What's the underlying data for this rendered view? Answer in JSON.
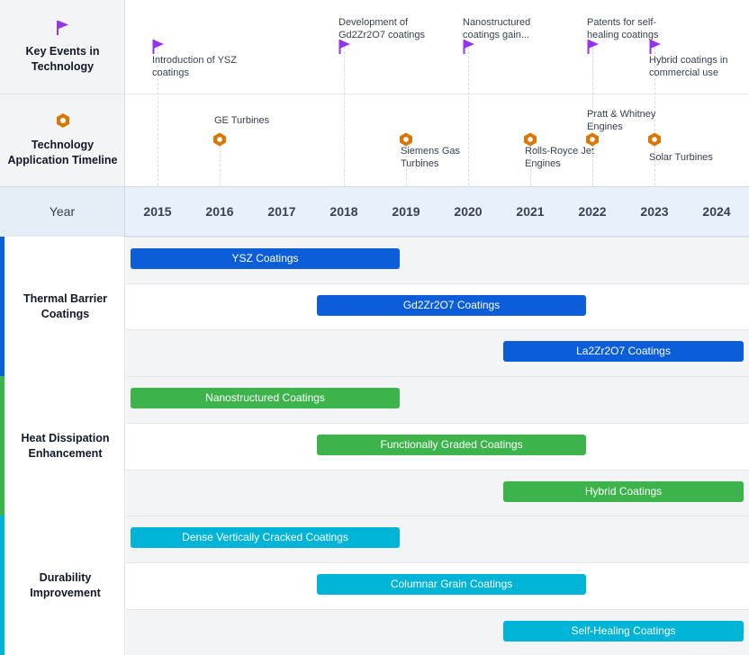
{
  "header": {
    "events_label": "Key Events in Technology",
    "apps_label": "Technology Application Timeline",
    "year_label": "Year"
  },
  "colors": {
    "flag": "#9333ea",
    "hex_icon": "#d97706",
    "tbc": "#0b5ed7",
    "heat": "#3cb44b",
    "durability": "#00b4d8"
  },
  "chart_data": {
    "type": "timeline",
    "x_years": [
      2015,
      2016,
      2017,
      2018,
      2019,
      2020,
      2021,
      2022,
      2023,
      2024
    ],
    "key_events": [
      {
        "year": 2015,
        "label": "Introduction of YSZ coatings",
        "icon": "flag-icon"
      },
      {
        "year": 2018,
        "label": "Development of Gd2Zr2O7 coatings",
        "icon": "flag-icon"
      },
      {
        "year": 2020,
        "label": "Nanostructured coatings gain...",
        "icon": "flag-icon"
      },
      {
        "year": 2022,
        "label": "Patents for self-healing coatings",
        "icon": "flag-icon"
      },
      {
        "year": 2023,
        "label": "Hybrid coatings in commercial use",
        "icon": "flag-icon"
      }
    ],
    "applications": [
      {
        "year": 2016,
        "label": "GE Turbines",
        "icon": "hexagon-icon"
      },
      {
        "year": 2019,
        "label": "Siemens Gas Turbines",
        "icon": "hexagon-icon"
      },
      {
        "year": 2021,
        "label": "Rolls-Royce Jet Engines",
        "icon": "hexagon-icon"
      },
      {
        "year": 2022,
        "label": "Pratt & Whitney Engines",
        "icon": "hexagon-icon"
      },
      {
        "year": 2023,
        "label": "Solar Turbines",
        "icon": "hexagon-icon"
      }
    ],
    "groups": [
      {
        "name": "Thermal Barrier Coatings",
        "color": "#0b5ed7",
        "bars": [
          {
            "label": "YSZ Coatings",
            "start": 2015,
            "end": 2018.9
          },
          {
            "label": "Gd2Zr2O7 Coatings",
            "start": 2018,
            "end": 2021.9
          },
          {
            "label": "La2Zr2O7 Coatings",
            "start": 2021,
            "end": 2024.9
          }
        ]
      },
      {
        "name": "Heat Dissipation Enhancement",
        "color": "#3cb44b",
        "bars": [
          {
            "label": "Nanostructured Coatings",
            "start": 2015,
            "end": 2018.9
          },
          {
            "label": "Functionally Graded Coatings",
            "start": 2018,
            "end": 2021.9
          },
          {
            "label": "Hybrid Coatings",
            "start": 2021,
            "end": 2024.9
          }
        ]
      },
      {
        "name": "Durability Improvement",
        "color": "#00b4d8",
        "bars": [
          {
            "label": "Dense Vertically Cracked Coatings",
            "start": 2015,
            "end": 2018.9
          },
          {
            "label": "Columnar Grain Coatings",
            "start": 2018,
            "end": 2021.9
          },
          {
            "label": "Self-Healing Coatings",
            "start": 2021,
            "end": 2024.9
          }
        ]
      }
    ]
  }
}
